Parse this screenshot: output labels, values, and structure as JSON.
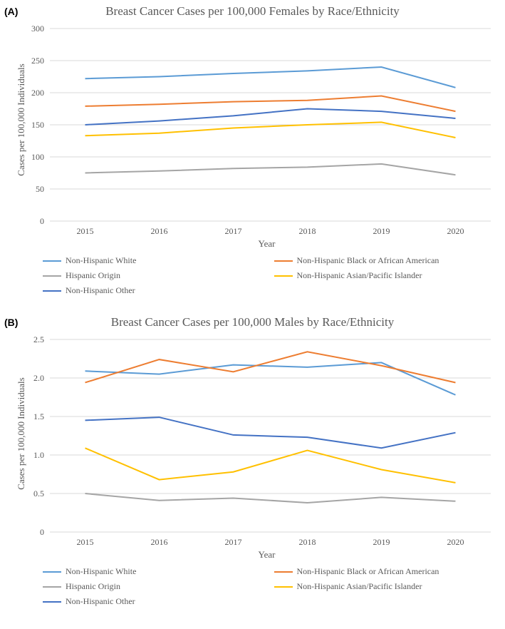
{
  "panelA": {
    "label": "(A)",
    "title": "Breast Cancer Cases per 100,000 Females by Race/Ethnicity",
    "xlabel": "Year",
    "ylabel": "Cases per 100,000 Individuals",
    "ylim": [
      0,
      300
    ],
    "ytick_step": 50,
    "categories": [
      "2015",
      "2016",
      "2017",
      "2018",
      "2019",
      "2020"
    ],
    "series": [
      {
        "name": "Non-Hispanic White",
        "color": "#5b9bd5",
        "values": [
          222,
          225,
          230,
          234,
          240,
          208
        ]
      },
      {
        "name": "Non-Hispanic Black or African American",
        "color": "#ed7d31",
        "values": [
          179,
          182,
          186,
          188,
          195,
          171
        ]
      },
      {
        "name": "Hispanic Origin",
        "color": "#a5a5a5",
        "values": [
          75,
          78,
          82,
          84,
          89,
          72
        ]
      },
      {
        "name": "Non-Hispanic Asian/Pacific Islander",
        "color": "#ffc000",
        "values": [
          133,
          137,
          145,
          150,
          154,
          130
        ]
      },
      {
        "name": "Non-Hispanic  Other",
        "color": "#4472c4",
        "values": [
          150,
          156,
          164,
          175,
          171,
          160
        ]
      }
    ],
    "background_color": "#ffffff",
    "grid_color": "#d9d9d9",
    "title_fontsize": 17,
    "label_fontsize": 13,
    "tick_fontsize": 12,
    "line_width": 2
  },
  "panelB": {
    "label": "(B)",
    "title": "Breast Cancer Cases per 100,000 Males by Race/Ethnicity",
    "xlabel": "Year",
    "ylabel": "Cases per 100,000 Individuals",
    "ylim": [
      0,
      2.5
    ],
    "ytick_step": 0.5,
    "categories": [
      "2015",
      "2016",
      "2017",
      "2018",
      "2019",
      "2020"
    ],
    "series": [
      {
        "name": "Non-Hispanic White",
        "color": "#5b9bd5",
        "values": [
          2.09,
          2.05,
          2.17,
          2.14,
          2.2,
          1.78
        ]
      },
      {
        "name": "Non-Hispanic Black or African American",
        "color": "#ed7d31",
        "values": [
          1.94,
          2.24,
          2.08,
          2.34,
          2.16,
          1.94
        ]
      },
      {
        "name": "Hispanic Origin",
        "color": "#a5a5a5",
        "values": [
          0.5,
          0.41,
          0.44,
          0.38,
          0.45,
          0.4
        ]
      },
      {
        "name": "Non-Hispanic Asian/Pacific Islander",
        "color": "#ffc000",
        "values": [
          1.09,
          0.68,
          0.78,
          1.06,
          0.81,
          0.64
        ]
      },
      {
        "name": "Non-Hispanic  Other",
        "color": "#4472c4",
        "values": [
          1.45,
          1.49,
          1.26,
          1.23,
          1.09,
          1.29
        ]
      }
    ],
    "background_color": "#ffffff",
    "grid_color": "#d9d9d9",
    "title_fontsize": 17,
    "label_fontsize": 13,
    "tick_fontsize": 12,
    "line_width": 2
  },
  "legend_order": [
    0,
    1,
    2,
    3,
    4
  ]
}
